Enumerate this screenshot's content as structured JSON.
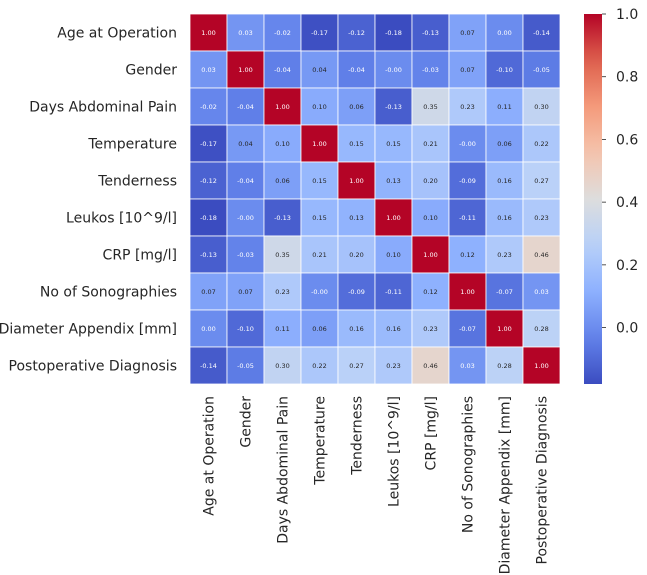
{
  "chart_data": {
    "type": "heatmap",
    "title": "",
    "xlabel": "",
    "ylabel": "",
    "rows": [
      "Age at Operation",
      "Gender",
      "Days Abdominal Pain",
      "Temperature",
      "Tenderness",
      "Leukos [10^9/l]",
      "CRP [mg/l]",
      "No of Sonographies",
      "Diameter Appendix [mm]",
      "Postoperative Diagnosis"
    ],
    "columns": [
      "Age at Operation",
      "Gender",
      "Days Abdominal Pain",
      "Temperature",
      "Tenderness",
      "Leukos [10^9/l]",
      "CRP [mg/l]",
      "No of Sonographies",
      "Diameter Appendix [mm]",
      "Postoperative Diagnosis"
    ],
    "values": [
      [
        1.0,
        0.03,
        -0.02,
        -0.17,
        -0.12,
        -0.18,
        -0.13,
        0.07,
        0.0,
        -0.14
      ],
      [
        0.03,
        1.0,
        -0.04,
        0.04,
        -0.04,
        -0.0,
        -0.03,
        0.07,
        -0.1,
        -0.05
      ],
      [
        -0.02,
        -0.04,
        1.0,
        0.1,
        0.06,
        -0.13,
        0.35,
        0.23,
        0.11,
        0.3
      ],
      [
        -0.17,
        0.04,
        0.1,
        1.0,
        0.15,
        0.15,
        0.21,
        -0.0,
        0.06,
        0.22
      ],
      [
        -0.12,
        -0.04,
        0.06,
        0.15,
        1.0,
        0.13,
        0.2,
        -0.09,
        0.16,
        0.27
      ],
      [
        -0.18,
        -0.0,
        -0.13,
        0.15,
        0.13,
        1.0,
        0.1,
        -0.11,
        0.16,
        0.23
      ],
      [
        -0.13,
        -0.03,
        0.35,
        0.21,
        0.2,
        0.1,
        1.0,
        0.12,
        0.23,
        0.46
      ],
      [
        0.07,
        0.07,
        0.23,
        -0.0,
        -0.09,
        -0.11,
        0.12,
        1.0,
        -0.07,
        0.03
      ],
      [
        0.0,
        -0.1,
        0.11,
        0.06,
        0.16,
        0.16,
        0.23,
        -0.07,
        1.0,
        0.28
      ],
      [
        -0.14,
        -0.05,
        0.3,
        0.22,
        0.27,
        0.23,
        0.46,
        0.03,
        0.28,
        1.0
      ]
    ],
    "cell_labels": [
      [
        "1.00",
        "0.03",
        "-0.02",
        "-0.17",
        "-0.12",
        "-0.18",
        "-0.13",
        "0.07",
        "0.00",
        "-0.14"
      ],
      [
        "0.03",
        "1.00",
        "-0.04",
        "0.04",
        "-0.04",
        "-0.00",
        "-0.03",
        "0.07",
        "-0.10",
        "-0.05"
      ],
      [
        "-0.02",
        "-0.04",
        "1.00",
        "0.10",
        "0.06",
        "-0.13",
        "0.35",
        "0.23",
        "0.11",
        "0.30"
      ],
      [
        "-0.17",
        "0.04",
        "0.10",
        "1.00",
        "0.15",
        "0.15",
        "0.21",
        "-0.00",
        "0.06",
        "0.22"
      ],
      [
        "-0.12",
        "-0.04",
        "0.06",
        "0.15",
        "1.00",
        "0.13",
        "0.20",
        "-0.09",
        "0.16",
        "0.27"
      ],
      [
        "-0.18",
        "-0.00",
        "-0.13",
        "0.15",
        "0.13",
        "1.00",
        "0.10",
        "-0.11",
        "0.16",
        "0.23"
      ],
      [
        "-0.13",
        "-0.03",
        "0.35",
        "0.21",
        "0.20",
        "0.10",
        "1.00",
        "0.12",
        "0.23",
        "0.46"
      ],
      [
        "0.07",
        "0.07",
        "0.23",
        "-0.00",
        "-0.09",
        "-0.11",
        "0.12",
        "1.00",
        "-0.07",
        "0.03"
      ],
      [
        "0.00",
        "-0.10",
        "0.11",
        "0.06",
        "0.16",
        "0.16",
        "0.23",
        "-0.07",
        "1.00",
        "0.28"
      ],
      [
        "-0.14",
        "-0.05",
        "0.30",
        "0.22",
        "0.27",
        "0.23",
        "0.46",
        "0.03",
        "0.28",
        "1.00"
      ]
    ],
    "colormap": "coolwarm",
    "color_range": [
      -0.18,
      1.0
    ],
    "colorbar": {
      "ticks": [
        0.0,
        0.2,
        0.4,
        0.6,
        0.8,
        1.0
      ],
      "tick_labels": [
        "0.0",
        "0.2",
        "0.4",
        "0.6",
        "0.8",
        "1.0"
      ]
    },
    "grid": false,
    "legend": "colorbar-right"
  }
}
